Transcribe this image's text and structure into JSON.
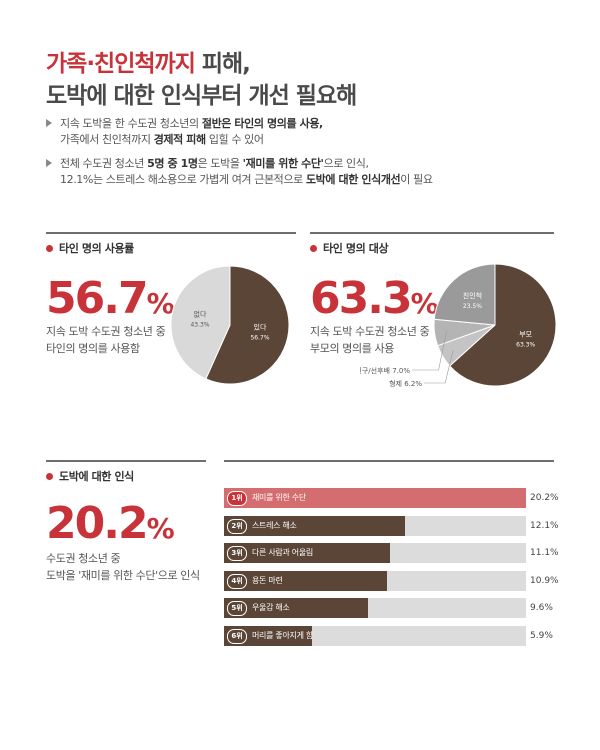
{
  "header": {
    "title_line1_red": "가족·친인척까지",
    "title_line1_dark": " 피해,",
    "title_line2": "도박에 대한 인식부터 개선 필요해"
  },
  "bullets": [
    {
      "line1_a": "지속 도박을 한 수도권 청소년의 ",
      "line1_b": "절반은 타인의 명의를 사용,",
      "line2_a": "가족에서 친인척까지 ",
      "line2_b": "경제적 피해",
      "line2_c": " 입힐 수 있어"
    },
    {
      "line1_a": "전체 수도권 청소년 ",
      "line1_b": "5명 중 1명",
      "line1_c": "은 도박을 ",
      "line1_d": "'재미를 위한 수단'",
      "line1_e": "으로 인식,",
      "line2_a": "12.1%는 스트레스 해소용으로 가볍게 여겨 근본적으로 ",
      "line2_b": "도박에 대한 인식개선",
      "line2_c": "이 필요"
    }
  ],
  "panels": {
    "usage": {
      "heading": "타인 명의 사용률",
      "big_value": "56.7",
      "big_unit": "%",
      "desc_line1": "지속 도박 수도권 청소년 중",
      "desc_line2": "타인의 명의를 사용함"
    },
    "target": {
      "heading": "타인 명의 대상",
      "big_value": "63.3",
      "big_unit": "%",
      "desc_line1": "지속 도박 수도권 청소년 중",
      "desc_line2": "부모의 명의를 사용"
    },
    "perception": {
      "heading": "도박에 대한 인식",
      "big_value": "20.2",
      "big_unit": "%",
      "desc_line1": "수도권 청소년 중",
      "desc_line2": "도박을 '재미를 위한 수단'으로 인식"
    }
  },
  "colors": {
    "accent": "#c8333a",
    "brown": "#5b4537",
    "light_gray": "#d9d9d9",
    "mid_gray": "#b4b4b4",
    "dark_gray": "#9a9a9a",
    "pink": "#d46d6f"
  },
  "chart_data": [
    {
      "type": "pie",
      "title": "타인 명의 사용률",
      "slices": [
        {
          "label": "있다",
          "value": 56.7,
          "value_text": "56.7%",
          "color": "#5b4537"
        },
        {
          "label": "없다",
          "value": 43.3,
          "value_text": "43.3%",
          "color": "#d9d9d9"
        }
      ]
    },
    {
      "type": "pie",
      "title": "타인 명의 대상",
      "slices": [
        {
          "label": "부모",
          "value": 63.3,
          "value_text": "63.3%",
          "color": "#5b4537"
        },
        {
          "label": "형제",
          "value": 6.2,
          "value_text": "6.2%",
          "color": "#c4c4c4"
        },
        {
          "label": "친구/선후배",
          "value": 7.0,
          "value_text": "7.0%",
          "color": "#b4b4b4"
        },
        {
          "label": "친인척",
          "value": 23.5,
          "value_text": "23.5%",
          "color": "#9a9a9a"
        }
      ]
    },
    {
      "type": "bar",
      "title": "도박에 대한 인식",
      "orientation": "horizontal",
      "xlim": [
        0,
        20.2
      ],
      "ranks": [
        "1위",
        "2위",
        "3위",
        "4위",
        "5위",
        "6위"
      ],
      "categories": [
        "재미를 위한 수단",
        "스트레스 해소",
        "다른 사람과 어울림",
        "용돈 마련",
        "우울감 해소",
        "머리를 좋아지게 함"
      ],
      "values": [
        20.2,
        12.1,
        11.1,
        10.9,
        9.6,
        5.9
      ],
      "value_labels": [
        "20.2%",
        "12.1%",
        "11.1%",
        "10.9%",
        "9.6%",
        "5.9%"
      ]
    }
  ]
}
